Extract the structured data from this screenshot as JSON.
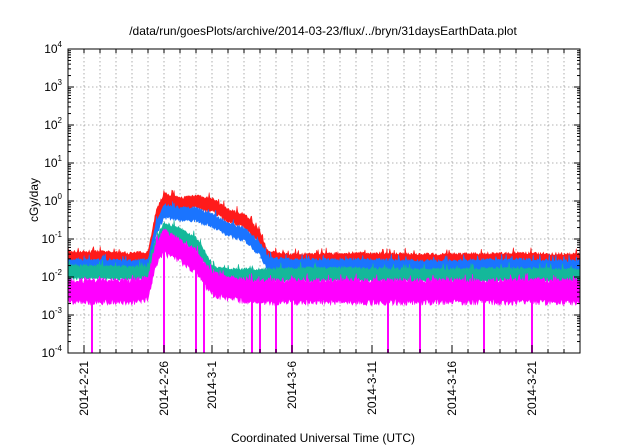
{
  "colors": {
    "red": "#ff1a1a",
    "blue": "#1a74ff",
    "teal": "#14b89a",
    "magenta": "#ff00ff",
    "grid": "#9a9a9a",
    "frame": "#000000"
  },
  "chart_data": {
    "type": "line",
    "title": "/data/run/goesPlots/archive/2014-03-23/flux/../bryn/31daysEarthData.plot",
    "xlabel": "Coordinated Universal Time (UTC)",
    "ylabel": "cGy/day",
    "yscale": "log",
    "ylim": [
      0.0001,
      10000
    ],
    "xlim": [
      "2014-02-20",
      "2014-03-24"
    ],
    "grid": true,
    "legend": "none",
    "y_ticks": [
      {
        "base": "10",
        "exp": "-4",
        "value": 0.0001
      },
      {
        "base": "10",
        "exp": "-3",
        "value": 0.001
      },
      {
        "base": "10",
        "exp": "-2",
        "value": 0.01
      },
      {
        "base": "10",
        "exp": "-1",
        "value": 0.1
      },
      {
        "base": "10",
        "exp": "0",
        "value": 1
      },
      {
        "base": "10",
        "exp": "1",
        "value": 10
      },
      {
        "base": "10",
        "exp": "2",
        "value": 100
      },
      {
        "base": "10",
        "exp": "3",
        "value": 1000
      },
      {
        "base": "10",
        "exp": "4",
        "value": 10000
      }
    ],
    "x_ticks": [
      "2014-2-21",
      "2014-2-26",
      "2014-3-1",
      "2014-3-6",
      "2014-3-11",
      "2014-3-16",
      "2014-3-21"
    ],
    "x_tick_dates": [
      "2014-02-21",
      "2014-02-26",
      "2014-03-01",
      "2014-03-06",
      "2014-03-11",
      "2014-03-16",
      "2014-03-21"
    ],
    "series": [
      {
        "color": "red",
        "x": [
          "2014-02-20",
          "2014-02-22",
          "2014-02-24",
          "2014-02-25",
          "2014-02-25T12:00",
          "2014-02-26",
          "2014-02-27",
          "2014-02-28",
          "2014-02-28T12:00",
          "2014-03-01",
          "2014-03-02",
          "2014-03-03",
          "2014-03-04",
          "2014-03-04T12:00",
          "2014-03-06",
          "2014-03-10",
          "2014-03-15",
          "2014-03-20",
          "2014-03-24"
        ],
        "y": [
          0.035,
          0.035,
          0.032,
          0.035,
          0.4,
          1.2,
          0.9,
          1.1,
          0.9,
          0.9,
          0.45,
          0.35,
          0.12,
          0.035,
          0.03,
          0.032,
          0.03,
          0.032,
          0.03
        ]
      },
      {
        "color": "blue",
        "x": [
          "2014-02-20",
          "2014-02-22",
          "2014-02-24",
          "2014-02-25",
          "2014-02-25T12:00",
          "2014-02-26",
          "2014-02-27",
          "2014-02-28",
          "2014-02-28T12:00",
          "2014-03-01",
          "2014-03-02",
          "2014-03-03",
          "2014-03-04",
          "2014-03-04T12:00",
          "2014-03-06",
          "2014-03-10",
          "2014-03-15",
          "2014-03-20",
          "2014-03-24"
        ],
        "y": [
          0.022,
          0.022,
          0.02,
          0.022,
          0.2,
          0.6,
          0.5,
          0.5,
          0.4,
          0.35,
          0.2,
          0.15,
          0.06,
          0.025,
          0.022,
          0.022,
          0.02,
          0.022,
          0.02
        ]
      },
      {
        "color": "teal",
        "x": [
          "2014-02-20",
          "2014-02-22",
          "2014-02-24",
          "2014-02-25",
          "2014-02-25T12:00",
          "2014-02-26",
          "2014-02-27",
          "2014-02-28",
          "2014-02-28T12:00",
          "2014-03-01",
          "2014-03-02",
          "2014-03-03",
          "2014-03-04",
          "2014-03-06",
          "2014-03-10",
          "2014-03-15",
          "2014-03-20",
          "2014-03-24"
        ],
        "y": [
          0.015,
          0.015,
          0.014,
          0.015,
          0.08,
          0.2,
          0.15,
          0.08,
          0.04,
          0.015,
          0.012,
          0.012,
          0.012,
          0.013,
          0.013,
          0.012,
          0.013,
          0.012
        ]
      },
      {
        "color": "magenta",
        "x": [
          "2014-02-20",
          "2014-02-22",
          "2014-02-24",
          "2014-02-25",
          "2014-02-25T12:00",
          "2014-02-26",
          "2014-02-27",
          "2014-02-28",
          "2014-02-28T12:00",
          "2014-03-01",
          "2014-03-02",
          "2014-03-04",
          "2014-03-06",
          "2014-03-10",
          "2014-03-15",
          "2014-03-20",
          "2014-03-24"
        ],
        "y": [
          0.005,
          0.005,
          0.005,
          0.006,
          0.05,
          0.1,
          0.06,
          0.03,
          0.015,
          0.008,
          0.006,
          0.005,
          0.005,
          0.005,
          0.005,
          0.005,
          0.005
        ]
      }
    ],
    "magenta_dropouts": [
      "2014-02-21T12:00",
      "2014-02-26",
      "2014-02-28",
      "2014-02-28T12:00",
      "2014-03-03T12:00",
      "2014-03-04",
      "2014-03-05",
      "2014-03-06",
      "2014-03-12",
      "2014-03-14",
      "2014-03-18",
      "2014-03-21"
    ]
  }
}
